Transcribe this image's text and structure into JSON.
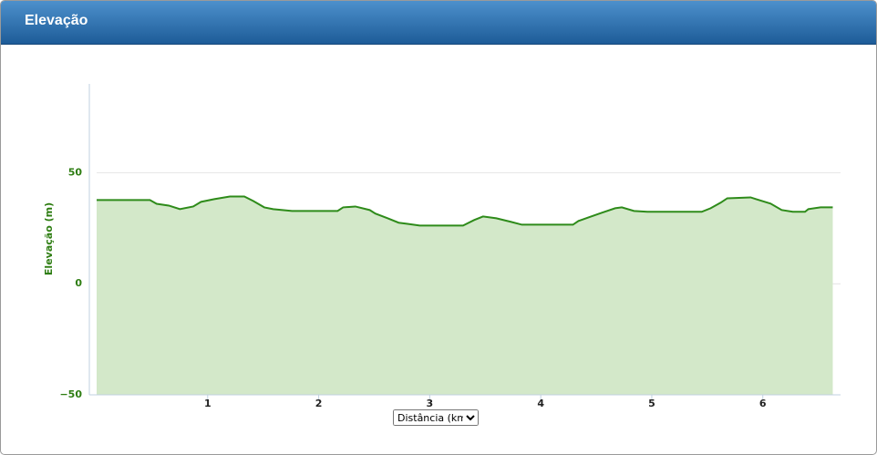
{
  "panel_title": "Elevação",
  "chart_data": {
    "type": "area",
    "y_label": "Elevação (m)",
    "x_label": "Distância (km)",
    "x": [
      0,
      0.48,
      0.54,
      0.65,
      0.75,
      0.87,
      0.94,
      1.06,
      1.2,
      1.33,
      1.41,
      1.51,
      1.59,
      1.76,
      2.17,
      2.22,
      2.33,
      2.46,
      2.51,
      2.62,
      2.72,
      2.8,
      2.91,
      3.3,
      3.4,
      3.48,
      3.6,
      3.73,
      3.83,
      4.29,
      4.34,
      4.43,
      4.55,
      4.67,
      4.73,
      4.84,
      4.96,
      5.45,
      5.53,
      5.62,
      5.68,
      5.89,
      5.94,
      6.07,
      6.17,
      6.27,
      6.38,
      6.41,
      6.52,
      6.63
    ],
    "values": [
      37.7,
      37.7,
      36,
      35.2,
      33.6,
      34.8,
      36.9,
      38.1,
      39.3,
      39.3,
      37.3,
      34.4,
      33.6,
      32.8,
      32.8,
      34.4,
      34.8,
      33.2,
      31.6,
      29.5,
      27.5,
      27,
      26.2,
      26.2,
      28.7,
      30.3,
      29.5,
      27.9,
      26.6,
      26.6,
      28.3,
      29.9,
      32,
      34,
      34.4,
      32.8,
      32.4,
      32.4,
      34,
      36.5,
      38.5,
      38.9,
      38.1,
      36.1,
      33.2,
      32.4,
      32.4,
      33.6,
      34.4,
      34.4
    ],
    "color": "#2e8b1a",
    "fill_color": "#d3e8c9",
    "xlim": [
      0,
      6.7
    ],
    "ylim": [
      -50,
      90
    ],
    "xticks": [
      1,
      2,
      3,
      4,
      5,
      6
    ],
    "yticks": [
      {
        "value": -50,
        "label": "−50"
      },
      0,
      50
    ],
    "grid": true
  }
}
